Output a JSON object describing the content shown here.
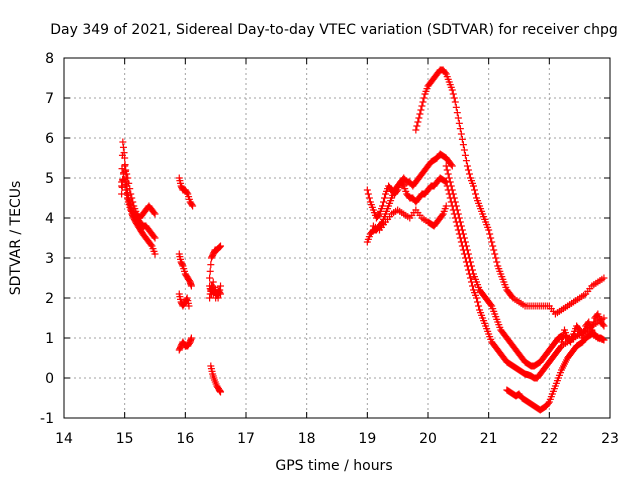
{
  "chart_data": {
    "type": "scatter",
    "title": "Day 349 of 2021, Sidereal Day-to-day VTEC variation (SDTVAR) for receiver chpg",
    "xlabel": "GPS time / hours",
    "ylabel": "SDTVAR / TECUs",
    "xlim": [
      14,
      23
    ],
    "ylim": [
      -1,
      8
    ],
    "x_ticks": [
      "14",
      "15",
      "16",
      "17",
      "18",
      "19",
      "20",
      "21",
      "22",
      "23"
    ],
    "y_ticks": [
      "-1",
      "0",
      "1",
      "2",
      "3",
      "4",
      "5",
      "6",
      "7",
      "8"
    ],
    "grid": true,
    "legend": "none",
    "marker": "plus",
    "color": "#ff0000",
    "segments": [
      {
        "x": [
          14.95,
          14.97,
          15.0,
          15.02,
          15.04,
          15.06,
          15.08,
          15.1,
          15.12,
          15.15,
          15.18,
          15.22,
          15.26,
          15.3,
          15.35,
          15.4,
          15.45,
          15.5
        ],
        "y": [
          4.9,
          5.9,
          5.5,
          5.0,
          4.7,
          4.5,
          4.4,
          4.3,
          4.1,
          4.0,
          3.9,
          3.8,
          3.7,
          3.6,
          3.5,
          3.4,
          3.3,
          3.1
        ]
      },
      {
        "x": [
          14.95,
          14.98,
          15.02,
          15.06,
          15.1,
          15.15,
          15.2,
          15.25,
          15.3,
          15.35,
          15.4,
          15.45,
          15.5
        ],
        "y": [
          4.6,
          5.1,
          4.7,
          4.4,
          4.2,
          4.1,
          4.0,
          3.9,
          3.8,
          3.8,
          3.7,
          3.6,
          3.5
        ]
      },
      {
        "x": [
          14.95,
          15.0,
          15.05,
          15.1,
          15.15,
          15.2,
          15.25,
          15.3,
          15.35,
          15.4,
          15.45,
          15.5
        ],
        "y": [
          4.8,
          5.3,
          5.0,
          4.6,
          4.3,
          4.1,
          4.0,
          4.1,
          4.2,
          4.3,
          4.2,
          4.1
        ]
      },
      {
        "x": [
          15.9,
          15.93,
          15.96,
          16.0,
          16.04,
          16.08,
          16.12
        ],
        "y": [
          5.0,
          4.8,
          4.7,
          4.7,
          4.6,
          4.4,
          4.3
        ]
      },
      {
        "x": [
          15.9,
          15.93,
          15.96,
          16.0,
          16.04,
          16.08,
          16.1
        ],
        "y": [
          3.1,
          2.9,
          2.8,
          2.6,
          2.5,
          2.4,
          2.3
        ]
      },
      {
        "x": [
          15.9,
          15.93,
          15.96,
          16.0,
          16.03,
          16.06
        ],
        "y": [
          2.1,
          1.9,
          1.8,
          1.9,
          2.0,
          1.8
        ]
      },
      {
        "x": [
          15.9,
          15.93,
          15.96,
          16.0,
          16.04,
          16.08,
          16.1
        ],
        "y": [
          0.7,
          0.8,
          0.9,
          0.8,
          0.8,
          0.9,
          1.0
        ]
      },
      {
        "x": [
          16.4,
          16.43,
          16.46,
          16.49,
          16.52,
          16.55,
          16.58
        ],
        "y": [
          2.5,
          3.0,
          3.1,
          3.2,
          3.2,
          3.25,
          3.3
        ]
      },
      {
        "x": [
          16.4,
          16.43,
          16.46,
          16.5,
          16.54,
          16.58
        ],
        "y": [
          2.0,
          2.3,
          2.1,
          2.2,
          2.0,
          2.3
        ]
      },
      {
        "x": [
          16.4,
          16.43,
          16.46,
          16.5,
          16.54,
          16.58
        ],
        "y": [
          2.3,
          2.1,
          2.4,
          2.0,
          2.2,
          2.1
        ]
      },
      {
        "x": [
          16.42,
          16.45,
          16.48,
          16.52,
          16.56,
          16.58
        ],
        "y": [
          0.3,
          0.1,
          -0.05,
          -0.2,
          -0.3,
          -0.35
        ]
      },
      {
        "x": [
          19.0,
          19.05,
          19.1,
          19.15,
          19.2,
          19.25,
          19.3,
          19.35,
          19.4,
          19.45,
          19.5,
          19.55,
          19.6,
          19.65,
          19.7,
          19.75,
          19.8,
          19.85,
          19.9,
          19.95,
          20.0,
          20.05,
          20.1,
          20.15,
          20.2,
          20.25,
          20.3,
          20.35,
          20.4
        ],
        "y": [
          4.7,
          4.4,
          4.2,
          4.0,
          4.1,
          4.3,
          4.6,
          4.8,
          4.7,
          4.6,
          4.7,
          4.9,
          5.0,
          4.9,
          4.9,
          4.8,
          4.9,
          5.0,
          5.1,
          5.2,
          5.3,
          5.4,
          5.45,
          5.5,
          5.6,
          5.55,
          5.5,
          5.4,
          5.3
        ]
      },
      {
        "x": [
          19.0,
          19.05,
          19.1,
          19.15,
          19.2,
          19.25,
          19.3,
          19.35,
          19.4,
          19.45,
          19.5,
          19.55,
          19.6,
          19.65,
          19.7,
          19.75,
          19.8,
          19.85,
          19.9,
          19.95,
          20.0,
          20.05,
          20.1,
          20.15,
          20.2,
          20.25,
          20.3
        ],
        "y": [
          3.4,
          3.6,
          3.7,
          3.7,
          3.8,
          3.9,
          4.1,
          4.3,
          4.5,
          4.7,
          4.8,
          4.9,
          4.8,
          4.6,
          4.5,
          4.5,
          4.4,
          4.5,
          4.6,
          4.6,
          4.7,
          4.8,
          4.8,
          4.9,
          5.0,
          4.95,
          4.9
        ]
      },
      {
        "x": [
          19.1,
          19.2,
          19.3,
          19.4,
          19.5,
          19.6,
          19.7,
          19.8,
          19.9,
          20.0,
          20.05,
          20.1,
          20.15,
          20.2,
          20.25,
          20.3
        ],
        "y": [
          3.8,
          3.7,
          3.9,
          4.1,
          4.2,
          4.1,
          4.0,
          4.2,
          4.0,
          3.9,
          3.85,
          3.8,
          3.9,
          4.0,
          4.1,
          4.3
        ]
      },
      {
        "x": [
          19.8,
          19.85,
          19.9,
          19.95,
          20.0,
          20.05,
          20.1,
          20.15,
          20.2,
          20.25,
          20.3,
          20.35,
          20.4,
          20.45,
          20.5,
          20.55,
          20.6,
          20.65,
          20.7,
          20.75,
          20.8,
          20.85,
          20.9,
          20.95,
          21.0,
          21.05,
          21.1,
          21.15,
          21.2,
          21.25,
          21.3,
          21.35,
          21.4,
          21.5,
          21.6,
          21.7,
          21.8,
          21.9,
          22.0,
          22.1,
          22.2,
          22.3,
          22.4,
          22.5,
          22.6,
          22.7,
          22.8,
          22.9
        ],
        "y": [
          6.2,
          6.5,
          6.8,
          7.1,
          7.3,
          7.4,
          7.5,
          7.6,
          7.7,
          7.7,
          7.6,
          7.4,
          7.2,
          6.9,
          6.5,
          6.1,
          5.7,
          5.3,
          5.0,
          4.8,
          4.5,
          4.3,
          4.1,
          3.9,
          3.7,
          3.4,
          3.1,
          2.8,
          2.6,
          2.4,
          2.2,
          2.1,
          2.0,
          1.9,
          1.8,
          1.8,
          1.8,
          1.8,
          1.8,
          1.6,
          1.7,
          1.8,
          1.9,
          2.0,
          2.1,
          2.3,
          2.4,
          2.5
        ]
      },
      {
        "x": [
          20.3,
          20.35,
          20.4,
          20.45,
          20.5,
          20.55,
          20.6,
          20.65,
          20.7,
          20.75,
          20.8,
          20.85,
          20.9,
          20.95,
          21.0,
          21.05,
          21.1,
          21.15,
          21.2,
          21.25,
          21.3,
          21.35,
          21.4,
          21.45,
          21.5,
          21.55,
          21.6,
          21.65,
          21.7,
          21.75,
          21.8,
          21.85,
          21.9,
          21.95,
          22.0,
          22.05,
          22.1,
          22.15,
          22.2,
          22.3,
          22.4,
          22.5,
          22.6,
          22.7,
          22.8,
          22.9
        ],
        "y": [
          5.3,
          5.0,
          4.7,
          4.4,
          4.1,
          3.8,
          3.5,
          3.2,
          2.9,
          2.6,
          2.4,
          2.2,
          2.1,
          2.0,
          1.9,
          1.8,
          1.6,
          1.4,
          1.2,
          1.1,
          1.0,
          0.9,
          0.8,
          0.7,
          0.6,
          0.5,
          0.4,
          0.35,
          0.3,
          0.3,
          0.35,
          0.4,
          0.5,
          0.6,
          0.7,
          0.8,
          0.9,
          1.0,
          1.05,
          1.0,
          1.0,
          1.1,
          1.2,
          1.3,
          1.4,
          1.5
        ]
      },
      {
        "x": [
          20.3,
          20.35,
          20.4,
          20.45,
          20.5,
          20.55,
          20.6,
          20.65,
          20.7,
          20.75,
          20.8,
          20.85,
          20.9,
          20.95,
          21.0,
          21.05,
          21.1,
          21.15,
          21.2,
          21.25,
          21.3,
          21.35,
          21.4,
          21.45,
          21.5,
          21.55,
          21.6,
          21.65,
          21.7,
          21.75,
          21.8,
          21.85,
          21.9,
          21.95,
          22.0,
          22.05,
          22.1,
          22.15,
          22.2,
          22.3,
          22.4,
          22.5,
          22.6,
          22.7,
          22.8,
          22.9
        ],
        "y": [
          4.9,
          4.6,
          4.3,
          4.0,
          3.7,
          3.4,
          3.1,
          2.8,
          2.5,
          2.2,
          2.0,
          1.7,
          1.5,
          1.3,
          1.1,
          0.9,
          0.8,
          0.7,
          0.6,
          0.5,
          0.4,
          0.35,
          0.3,
          0.25,
          0.2,
          0.15,
          0.1,
          0.08,
          0.05,
          0.0,
          0.0,
          0.1,
          0.2,
          0.3,
          0.4,
          0.5,
          0.6,
          0.7,
          0.8,
          0.9,
          1.0,
          1.1,
          1.2,
          1.1,
          1.0,
          0.95
        ]
      },
      {
        "x": [
          21.3,
          21.35,
          21.4,
          21.45,
          21.5,
          21.55,
          21.6,
          21.65,
          21.7,
          21.75,
          21.8,
          21.85,
          21.9,
          21.95,
          22.0,
          22.05,
          22.1,
          22.15,
          22.2,
          22.25,
          22.3,
          22.35,
          22.4,
          22.45,
          22.5,
          22.55,
          22.6,
          22.65,
          22.7,
          22.75,
          22.8,
          22.85,
          22.9
        ],
        "y": [
          -0.3,
          -0.35,
          -0.4,
          -0.45,
          -0.4,
          -0.5,
          -0.55,
          -0.6,
          -0.65,
          -0.7,
          -0.75,
          -0.8,
          -0.75,
          -0.7,
          -0.6,
          -0.4,
          -0.2,
          0.0,
          0.2,
          0.35,
          0.5,
          0.6,
          0.7,
          0.8,
          0.85,
          0.9,
          1.0,
          1.05,
          1.1,
          1.1,
          1.0,
          1.0,
          0.95
        ]
      },
      {
        "x": [
          22.2,
          22.25,
          22.3,
          22.35,
          22.4,
          22.45,
          22.5,
          22.55,
          22.6,
          22.65,
          22.7,
          22.75,
          22.8,
          22.85,
          22.9
        ],
        "y": [
          0.9,
          1.2,
          1.0,
          0.9,
          1.1,
          1.3,
          1.2,
          1.0,
          1.3,
          1.4,
          1.2,
          1.5,
          1.6,
          1.4,
          1.3
        ]
      }
    ]
  }
}
